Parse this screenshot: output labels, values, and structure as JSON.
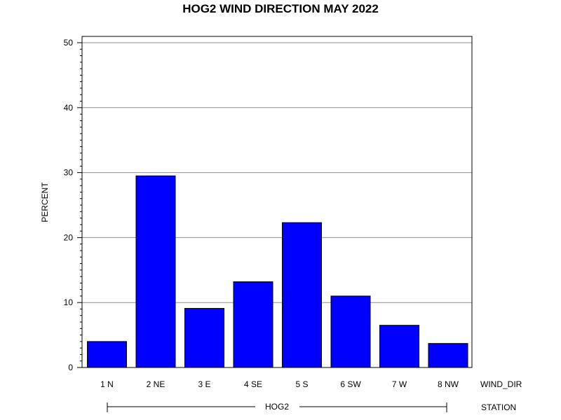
{
  "chart_data": {
    "type": "bar",
    "title": "HOG2 WIND DIRECTION MAY 2022",
    "ylabel": "PERCENT",
    "xlabel": "WIND_DIR",
    "group_label": "STATION",
    "group_value": "HOG2",
    "categories": [
      "1 N",
      "2 NE",
      "3 E",
      "4 SE",
      "5 S",
      "6 SW",
      "7 W",
      "8 NW"
    ],
    "values": [
      4.0,
      29.5,
      9.1,
      13.2,
      22.3,
      11.0,
      6.5,
      3.7
    ],
    "ylim": [
      0,
      51
    ],
    "yticks": [
      0,
      10,
      20,
      30,
      40,
      50
    ],
    "grid": true,
    "bar_color": "#0000ff"
  }
}
